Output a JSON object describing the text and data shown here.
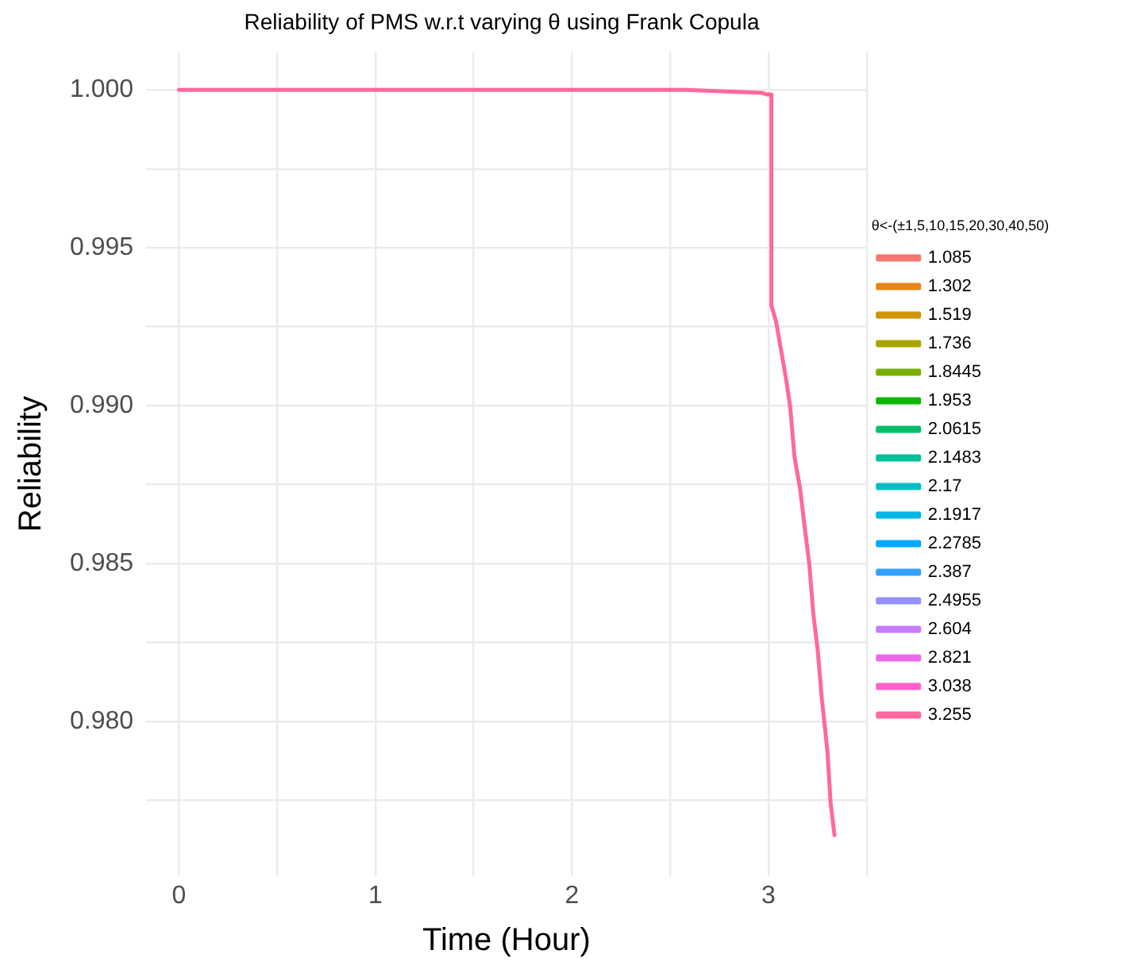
{
  "chart_data": {
    "type": "line",
    "title": "Reliability of PMS w.r.t varying θ using Frank Copula",
    "xlabel": "Time (Hour)",
    "ylabel": "Reliability",
    "legend_title": "θ<-(±1,5,10,15,20,30,40,50)",
    "legend": "right",
    "grid": true,
    "marker": "none",
    "x": [
      0,
      2.585,
      2.965,
      2.99,
      3.015,
      3.015,
      3.038,
      3.067,
      3.091,
      3.111,
      3.132,
      3.161,
      3.184,
      3.208,
      3.228,
      3.251,
      3.272,
      3.287,
      3.301,
      3.316,
      3.336
    ],
    "xlim": [
      -0.167,
      3.5
    ],
    "xticks": [
      0,
      {
        "value": 0.5,
        "label": null
      },
      1,
      {
        "value": 1.5,
        "label": null
      },
      2,
      {
        "value": 2.5,
        "label": null
      },
      3,
      {
        "value": 3.5,
        "label": null
      }
    ],
    "ylim": [
      0.9751,
      1.0012
    ],
    "yticks": [
      {
        "value": 0.9775,
        "label": null
      },
      {
        "value": 0.98,
        "label": "0.980"
      },
      {
        "value": 0.9825,
        "label": null
      },
      {
        "value": 0.985,
        "label": "0.985"
      },
      {
        "value": 0.9875,
        "label": null
      },
      {
        "value": 0.99,
        "label": "0.990"
      },
      {
        "value": 0.9925,
        "label": null
      },
      {
        "value": 0.995,
        "label": "0.995"
      },
      {
        "value": 0.9975,
        "label": null
      },
      {
        "value": 1,
        "label": "1.000"
      }
    ],
    "series": [
      {
        "name": "1.085",
        "color": "#f8766d",
        "values": [
          null,
          null,
          null,
          null,
          null,
          null,
          null,
          null,
          null,
          null,
          null,
          null,
          null,
          null,
          null,
          null,
          null,
          null,
          null,
          null,
          null
        ]
      },
      {
        "name": "1.302",
        "color": "#e68613",
        "values": [
          null,
          null,
          null,
          null,
          null,
          null,
          null,
          null,
          null,
          null,
          null,
          null,
          null,
          null,
          null,
          null,
          null,
          null,
          null,
          null,
          null
        ]
      },
      {
        "name": "1.519",
        "color": "#cd9600",
        "values": [
          null,
          null,
          null,
          null,
          null,
          null,
          null,
          null,
          null,
          null,
          null,
          null,
          null,
          null,
          null,
          null,
          null,
          null,
          null,
          null,
          null
        ]
      },
      {
        "name": "1.736",
        "color": "#aba300",
        "values": [
          null,
          null,
          null,
          null,
          null,
          null,
          null,
          null,
          null,
          null,
          null,
          null,
          null,
          null,
          null,
          null,
          null,
          null,
          null,
          null,
          null
        ]
      },
      {
        "name": "1.8445",
        "color": "#7cae00",
        "values": [
          null,
          null,
          null,
          null,
          null,
          null,
          null,
          null,
          null,
          null,
          null,
          null,
          null,
          null,
          null,
          null,
          null,
          null,
          null,
          null,
          null
        ]
      },
      {
        "name": "1.953",
        "color": "#0cb702",
        "values": [
          null,
          null,
          null,
          null,
          null,
          null,
          null,
          null,
          null,
          null,
          null,
          null,
          null,
          null,
          null,
          null,
          null,
          null,
          null,
          null,
          null
        ]
      },
      {
        "name": "2.0615",
        "color": "#00be67",
        "values": [
          null,
          null,
          null,
          null,
          null,
          null,
          null,
          null,
          null,
          null,
          null,
          null,
          null,
          null,
          null,
          null,
          null,
          null,
          null,
          null,
          null
        ]
      },
      {
        "name": "2.1483",
        "color": "#00c19a",
        "values": [
          null,
          null,
          null,
          null,
          null,
          null,
          null,
          null,
          null,
          null,
          null,
          null,
          null,
          null,
          null,
          null,
          null,
          null,
          null,
          null,
          null
        ]
      },
      {
        "name": "2.17",
        "color": "#00bfc4",
        "values": [
          null,
          null,
          null,
          null,
          null,
          null,
          null,
          null,
          null,
          null,
          null,
          null,
          null,
          null,
          null,
          null,
          null,
          null,
          null,
          null,
          null
        ]
      },
      {
        "name": "2.1917",
        "color": "#00b8e7",
        "values": [
          null,
          null,
          null,
          null,
          null,
          null,
          null,
          null,
          null,
          null,
          null,
          null,
          null,
          null,
          null,
          null,
          null,
          null,
          null,
          null,
          null
        ]
      },
      {
        "name": "2.2785",
        "color": "#00a9ff",
        "values": [
          null,
          null,
          null,
          null,
          null,
          null,
          null,
          null,
          null,
          null,
          null,
          null,
          null,
          null,
          null,
          null,
          null,
          null,
          null,
          null,
          null
        ]
      },
      {
        "name": "2.387",
        "color": "#35a2ff",
        "values": [
          null,
          null,
          null,
          null,
          null,
          null,
          null,
          null,
          null,
          null,
          null,
          null,
          null,
          null,
          null,
          null,
          null,
          null,
          null,
          null,
          null
        ]
      },
      {
        "name": "2.4955",
        "color": "#9590ff",
        "values": [
          null,
          null,
          null,
          null,
          null,
          null,
          null,
          null,
          null,
          null,
          null,
          null,
          null,
          null,
          null,
          null,
          null,
          null,
          null,
          null,
          null
        ]
      },
      {
        "name": "2.604",
        "color": "#c77cff",
        "values": [
          null,
          null,
          null,
          null,
          null,
          null,
          null,
          null,
          null,
          null,
          null,
          null,
          null,
          null,
          null,
          null,
          null,
          null,
          null,
          null,
          null
        ]
      },
      {
        "name": "2.821",
        "color": "#ed68ed",
        "values": [
          null,
          null,
          null,
          null,
          null,
          null,
          null,
          null,
          null,
          null,
          null,
          null,
          null,
          null,
          null,
          null,
          null,
          null,
          null,
          null,
          null
        ]
      },
      {
        "name": "3.038",
        "color": "#ff61cc",
        "values": [
          null,
          null,
          null,
          null,
          null,
          null,
          null,
          null,
          null,
          null,
          null,
          null,
          null,
          null,
          null,
          null,
          null,
          null,
          null,
          null,
          null
        ]
      },
      {
        "name": "3.255",
        "color": "#ff689f",
        "values": [
          1,
          1,
          0.99991,
          0.99986,
          0.99986,
          0.99316,
          0.99268,
          0.99165,
          0.99079,
          0.98993,
          0.98839,
          0.98736,
          0.98616,
          0.98496,
          0.98342,
          0.98222,
          0.98067,
          0.97982,
          0.97896,
          0.97742,
          0.97639
        ]
      }
    ]
  }
}
